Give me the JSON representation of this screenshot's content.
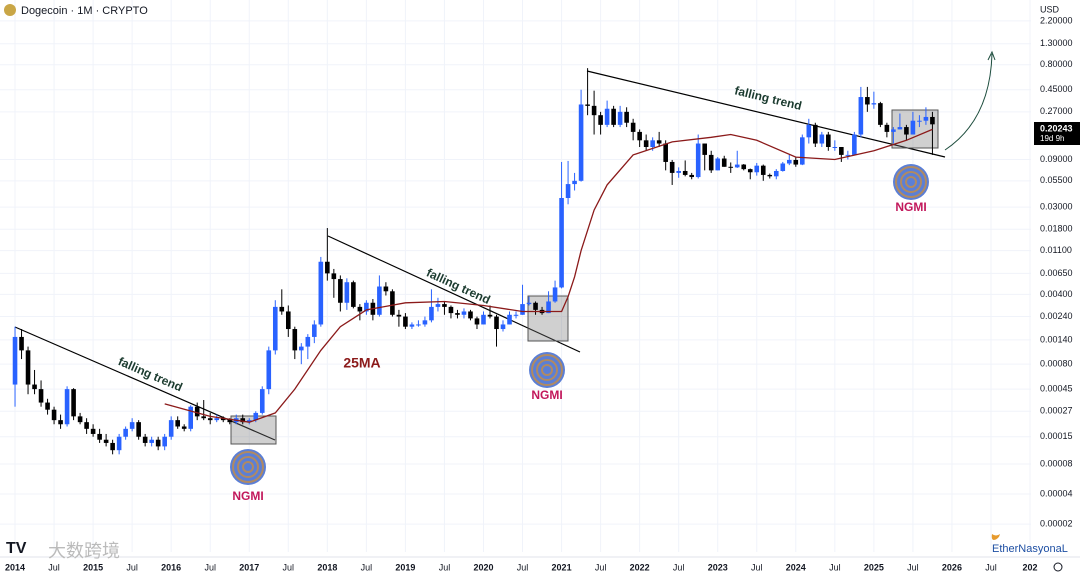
{
  "chart_data": {
    "type": "candlestick",
    "title": "Dogecoin · 1M · CRYPTO",
    "currency": "USD",
    "log_scale": true,
    "up_color": "#2962ff",
    "down_color": "#000000",
    "ylim": [
      1.05e-05,
      3.565
    ],
    "yticks": [
      {
        "value": 2.2,
        "label": "2.20000"
      },
      {
        "value": 1.3,
        "label": "1.30000"
      },
      {
        "value": 0.8,
        "label": "0.80000"
      },
      {
        "value": 0.45,
        "label": "0.45000"
      },
      {
        "value": 0.27,
        "label": "0.27000"
      },
      {
        "value": 0.09,
        "label": "0.09000"
      },
      {
        "value": 0.055,
        "label": "0.05500"
      },
      {
        "value": 0.03,
        "label": "0.03000"
      },
      {
        "value": 0.018,
        "label": "0.01800"
      },
      {
        "value": 0.011,
        "label": "0.01100"
      },
      {
        "value": 0.0065,
        "label": "0.00650"
      },
      {
        "value": 0.004,
        "label": "0.00400"
      },
      {
        "value": 0.0024,
        "label": "0.00240"
      },
      {
        "value": 0.0014,
        "label": "0.00140"
      },
      {
        "value": 0.0008,
        "label": "0.00080"
      },
      {
        "value": 0.00045,
        "label": "0.00045"
      },
      {
        "value": 0.00027,
        "label": "0.00027"
      },
      {
        "value": 0.00015,
        "label": "0.00015"
      },
      {
        "value": 8e-05,
        "label": "0.00008"
      },
      {
        "value": 4e-05,
        "label": "0.00004"
      },
      {
        "value": 2e-05,
        "label": "0.00002"
      }
    ],
    "xlim": [
      -2.31,
      156.15
    ],
    "xticks": [
      {
        "value": 0,
        "label": "2014"
      },
      {
        "value": 6,
        "label": "Jul"
      },
      {
        "value": 12,
        "label": "2015"
      },
      {
        "value": 18,
        "label": "Jul"
      },
      {
        "value": 24,
        "label": "2016"
      },
      {
        "value": 30,
        "label": "Jul"
      },
      {
        "value": 36,
        "label": "2017"
      },
      {
        "value": 42,
        "label": "Jul"
      },
      {
        "value": 48,
        "label": "2018"
      },
      {
        "value": 54,
        "label": "Jul"
      },
      {
        "value": 60,
        "label": "2019"
      },
      {
        "value": 66,
        "label": "Jul"
      },
      {
        "value": 72,
        "label": "2020"
      },
      {
        "value": 78,
        "label": "Jul"
      },
      {
        "value": 84,
        "label": "2021"
      },
      {
        "value": 90,
        "label": "Jul"
      },
      {
        "value": 96,
        "label": "2022"
      },
      {
        "value": 102,
        "label": "Jul"
      },
      {
        "value": 108,
        "label": "2023"
      },
      {
        "value": 114,
        "label": "Jul"
      },
      {
        "value": 120,
        "label": "2024"
      },
      {
        "value": 126,
        "label": "Jul"
      },
      {
        "value": 132,
        "label": "2025"
      },
      {
        "value": 138,
        "label": "Jul"
      },
      {
        "value": 144,
        "label": "2026"
      },
      {
        "value": 150,
        "label": "Jul"
      },
      {
        "value": 156,
        "label": "202"
      }
    ],
    "ohlc": [
      [
        0.0005,
        0.0019,
        0.0003,
        0.0015
      ],
      [
        0.0015,
        0.0018,
        0.0009,
        0.0011
      ],
      [
        0.0011,
        0.0012,
        0.0004,
        0.0005
      ],
      [
        0.0005,
        0.0007,
        0.0004,
        0.00045
      ],
      [
        0.00045,
        0.00055,
        0.0003,
        0.00033
      ],
      [
        0.00033,
        0.00036,
        0.00025,
        0.00028
      ],
      [
        0.00028,
        0.0003,
        0.0002,
        0.00022
      ],
      [
        0.00022,
        0.00025,
        0.00018,
        0.0002
      ],
      [
        0.0002,
        0.00048,
        0.00019,
        0.00045
      ],
      [
        0.00045,
        0.00046,
        0.00022,
        0.00024
      ],
      [
        0.00024,
        0.00026,
        0.0002,
        0.00021
      ],
      [
        0.00021,
        0.00023,
        0.00016,
        0.00018
      ],
      [
        0.00018,
        0.0002,
        0.00015,
        0.00016
      ],
      [
        0.00016,
        0.00018,
        0.00013,
        0.00014
      ],
      [
        0.00014,
        0.00016,
        0.00012,
        0.00013
      ],
      [
        0.00013,
        0.00014,
        0.0001,
        0.00011
      ],
      [
        0.00011,
        0.00016,
        0.0001,
        0.00015
      ],
      [
        0.00015,
        0.00019,
        0.00014,
        0.00018
      ],
      [
        0.00018,
        0.00023,
        0.00017,
        0.00021
      ],
      [
        0.00021,
        0.00022,
        0.00014,
        0.00015
      ],
      [
        0.00015,
        0.00016,
        0.00012,
        0.00013
      ],
      [
        0.00013,
        0.00015,
        0.00012,
        0.00014
      ],
      [
        0.00014,
        0.00015,
        0.00011,
        0.00012
      ],
      [
        0.00012,
        0.00016,
        0.00011,
        0.00015
      ],
      [
        0.00015,
        0.00024,
        0.00014,
        0.00022
      ],
      [
        0.00022,
        0.00024,
        0.00018,
        0.00019
      ],
      [
        0.00019,
        0.0002,
        0.00017,
        0.00018
      ],
      [
        0.00018,
        0.00031,
        0.00017,
        0.0003
      ],
      [
        0.0003,
        0.00033,
        0.00022,
        0.00024
      ],
      [
        0.00024,
        0.00035,
        0.00022,
        0.00023
      ],
      [
        0.00023,
        0.00026,
        0.0002,
        0.00022
      ],
      [
        0.00022,
        0.00025,
        0.00021,
        0.00023
      ],
      [
        0.00023,
        0.00024,
        0.00021,
        0.00022
      ],
      [
        0.00022,
        0.00023,
        0.0002,
        0.00021
      ],
      [
        0.00021,
        0.00025,
        0.0002,
        0.00023
      ],
      [
        0.00023,
        0.00025,
        0.0002,
        0.00021
      ],
      [
        0.00021,
        0.00023,
        0.0002,
        0.00022
      ],
      [
        0.00022,
        0.00027,
        0.00021,
        0.00026
      ],
      [
        0.00026,
        0.00048,
        0.00025,
        0.00045
      ],
      [
        0.00045,
        0.0012,
        0.0004,
        0.0011
      ],
      [
        0.0011,
        0.0035,
        0.001,
        0.003
      ],
      [
        0.003,
        0.0045,
        0.0025,
        0.0027
      ],
      [
        0.0027,
        0.0031,
        0.0015,
        0.0018
      ],
      [
        0.0018,
        0.0019,
        0.0009,
        0.0011
      ],
      [
        0.0011,
        0.0013,
        0.0008,
        0.0012
      ],
      [
        0.0012,
        0.0016,
        0.0009,
        0.0015
      ],
      [
        0.0015,
        0.0022,
        0.0013,
        0.002
      ],
      [
        0.002,
        0.0095,
        0.0019,
        0.0085
      ],
      [
        0.0085,
        0.0185,
        0.0055,
        0.0065
      ],
      [
        0.0065,
        0.0072,
        0.0037,
        0.0057
      ],
      [
        0.0057,
        0.0062,
        0.0027,
        0.0033
      ],
      [
        0.0033,
        0.0058,
        0.0028,
        0.0053
      ],
      [
        0.0053,
        0.0055,
        0.0029,
        0.003
      ],
      [
        0.003,
        0.0032,
        0.0022,
        0.0027
      ],
      [
        0.0027,
        0.0035,
        0.0025,
        0.0033
      ],
      [
        0.0033,
        0.0036,
        0.0022,
        0.0025
      ],
      [
        0.0025,
        0.0062,
        0.0024,
        0.0048
      ],
      [
        0.0048,
        0.0053,
        0.0039,
        0.0043
      ],
      [
        0.0043,
        0.0045,
        0.0024,
        0.0025
      ],
      [
        0.0025,
        0.0028,
        0.0019,
        0.0024
      ],
      [
        0.0024,
        0.0026,
        0.0018,
        0.0019
      ],
      [
        0.0019,
        0.0021,
        0.0018,
        0.002
      ],
      [
        0.002,
        0.0022,
        0.0019,
        0.002
      ],
      [
        0.002,
        0.0024,
        0.0019,
        0.0022
      ],
      [
        0.0022,
        0.0045,
        0.0021,
        0.003
      ],
      [
        0.003,
        0.0037,
        0.0027,
        0.0032
      ],
      [
        0.0032,
        0.0034,
        0.0025,
        0.003
      ],
      [
        0.003,
        0.0031,
        0.0023,
        0.0026
      ],
      [
        0.0026,
        0.0028,
        0.0023,
        0.0025
      ],
      [
        0.0025,
        0.0029,
        0.0023,
        0.0027
      ],
      [
        0.0027,
        0.0028,
        0.0022,
        0.0023
      ],
      [
        0.0023,
        0.0024,
        0.0018,
        0.002
      ],
      [
        0.002,
        0.0027,
        0.002,
        0.0025
      ],
      [
        0.0025,
        0.0031,
        0.0023,
        0.0024
      ],
      [
        0.0024,
        0.0025,
        0.0012,
        0.0018
      ],
      [
        0.0018,
        0.0022,
        0.0017,
        0.002
      ],
      [
        0.002,
        0.0027,
        0.002,
        0.0025
      ],
      [
        0.0025,
        0.0027,
        0.0023,
        0.0025
      ],
      [
        0.0025,
        0.005,
        0.0025,
        0.0032
      ],
      [
        0.0032,
        0.0038,
        0.0031,
        0.0033
      ],
      [
        0.0033,
        0.0034,
        0.0025,
        0.0028
      ],
      [
        0.0028,
        0.003,
        0.0025,
        0.0026
      ],
      [
        0.0026,
        0.0043,
        0.0026,
        0.0034
      ],
      [
        0.0034,
        0.0055,
        0.0033,
        0.0047
      ],
      [
        0.0047,
        0.085,
        0.0046,
        0.037
      ],
      [
        0.037,
        0.087,
        0.032,
        0.051
      ],
      [
        0.051,
        0.066,
        0.044,
        0.055
      ],
      [
        0.055,
        0.45,
        0.054,
        0.32
      ],
      [
        0.32,
        0.74,
        0.25,
        0.31
      ],
      [
        0.31,
        0.44,
        0.16,
        0.25
      ],
      [
        0.25,
        0.27,
        0.16,
        0.2
      ],
      [
        0.2,
        0.35,
        0.19,
        0.29
      ],
      [
        0.29,
        0.31,
        0.19,
        0.2
      ],
      [
        0.2,
        0.31,
        0.19,
        0.27
      ],
      [
        0.27,
        0.3,
        0.19,
        0.21
      ],
      [
        0.21,
        0.23,
        0.14,
        0.17
      ],
      [
        0.17,
        0.18,
        0.12,
        0.14
      ],
      [
        0.14,
        0.16,
        0.11,
        0.12
      ],
      [
        0.12,
        0.15,
        0.11,
        0.14
      ],
      [
        0.14,
        0.17,
        0.12,
        0.13
      ],
      [
        0.13,
        0.14,
        0.07,
        0.085
      ],
      [
        0.085,
        0.089,
        0.05,
        0.066
      ],
      [
        0.066,
        0.075,
        0.059,
        0.069
      ],
      [
        0.069,
        0.088,
        0.061,
        0.063
      ],
      [
        0.063,
        0.066,
        0.057,
        0.06
      ],
      [
        0.06,
        0.16,
        0.058,
        0.13
      ],
      [
        0.13,
        0.13,
        0.07,
        0.1
      ],
      [
        0.1,
        0.11,
        0.066,
        0.07
      ],
      [
        0.07,
        0.095,
        0.07,
        0.092
      ],
      [
        0.092,
        0.098,
        0.076,
        0.076
      ],
      [
        0.076,
        0.084,
        0.066,
        0.075
      ],
      [
        0.075,
        0.11,
        0.074,
        0.08
      ],
      [
        0.08,
        0.081,
        0.07,
        0.072
      ],
      [
        0.072,
        0.073,
        0.057,
        0.067
      ],
      [
        0.067,
        0.083,
        0.062,
        0.078
      ],
      [
        0.078,
        0.08,
        0.055,
        0.063
      ],
      [
        0.063,
        0.065,
        0.058,
        0.061
      ],
      [
        0.061,
        0.072,
        0.057,
        0.069
      ],
      [
        0.069,
        0.085,
        0.068,
        0.082
      ],
      [
        0.082,
        0.1,
        0.079,
        0.089
      ],
      [
        0.089,
        0.096,
        0.076,
        0.08
      ],
      [
        0.08,
        0.16,
        0.079,
        0.15
      ],
      [
        0.15,
        0.23,
        0.13,
        0.2
      ],
      [
        0.2,
        0.21,
        0.12,
        0.13
      ],
      [
        0.13,
        0.17,
        0.12,
        0.16
      ],
      [
        0.16,
        0.17,
        0.11,
        0.12
      ],
      [
        0.12,
        0.14,
        0.11,
        0.12
      ],
      [
        0.12,
        0.12,
        0.085,
        0.1
      ],
      [
        0.1,
        0.11,
        0.09,
        0.1
      ],
      [
        0.1,
        0.17,
        0.1,
        0.16
      ],
      [
        0.16,
        0.48,
        0.15,
        0.38
      ],
      [
        0.38,
        0.48,
        0.27,
        0.32
      ],
      [
        0.32,
        0.43,
        0.29,
        0.33
      ],
      [
        0.33,
        0.34,
        0.19,
        0.2
      ],
      [
        0.2,
        0.21,
        0.15,
        0.17
      ],
      [
        0.17,
        0.19,
        0.13,
        0.18
      ],
      [
        0.18,
        0.26,
        0.18,
        0.19
      ],
      [
        0.19,
        0.2,
        0.14,
        0.16
      ],
      [
        0.16,
        0.27,
        0.16,
        0.22
      ],
      [
        0.22,
        0.25,
        0.19,
        0.22
      ],
      [
        0.22,
        0.3,
        0.2,
        0.24
      ],
      [
        0.24,
        0.27,
        0.1,
        0.20243
      ]
    ],
    "ma": {
      "name": "25MA",
      "color": "#8b1a1a",
      "x": [
        23,
        30,
        36,
        40,
        43,
        47,
        50,
        54,
        60,
        66,
        72,
        78,
        84,
        85,
        86,
        87,
        89,
        91,
        95,
        101,
        107,
        110,
        114,
        120,
        126,
        132,
        137,
        141
      ],
      "values": [
        0.00032,
        0.00024,
        0.00021,
        0.00026,
        0.00045,
        0.0011,
        0.0019,
        0.0028,
        0.0033,
        0.0034,
        0.0031,
        0.0027,
        0.0027,
        0.0038,
        0.006,
        0.011,
        0.028,
        0.05,
        0.1,
        0.135,
        0.15,
        0.16,
        0.14,
        0.095,
        0.09,
        0.11,
        0.14,
        0.18
      ]
    },
    "last_price": 0.20243,
    "countdown": "19d 9h",
    "annotations": {
      "trend_labels": [
        "falling trend",
        "falling trend",
        "falling trend"
      ],
      "badges": [
        "NGMI",
        "NGMI",
        "NGMI"
      ],
      "watermark": "大数跨境",
      "author": "EtherNasyonaL"
    }
  }
}
